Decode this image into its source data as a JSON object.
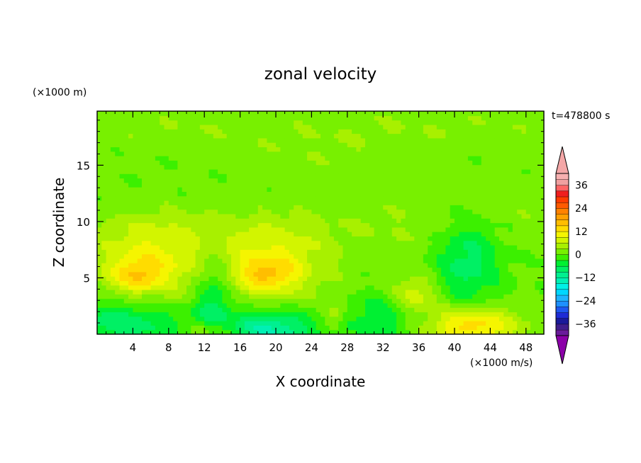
{
  "chart_data": {
    "type": "heatmap",
    "title": "zonal velocity",
    "xlabel": "X coordinate",
    "ylabel": "Z coordinate",
    "x_unit": "(×1000 m/s)",
    "y_unit": "(×1000 m)",
    "time_label": "t=478800 s",
    "xlim": [
      0,
      50
    ],
    "ylim": [
      0,
      19.8
    ],
    "x_ticks": [
      4,
      8,
      12,
      16,
      20,
      24,
      28,
      32,
      36,
      40,
      44,
      48
    ],
    "y_ticks": [
      5,
      10,
      15
    ],
    "colorbar": {
      "levels": [
        -42,
        -39,
        -36,
        -33,
        -30,
        -27,
        -24,
        -21,
        -18,
        -15,
        -12,
        -9,
        -6,
        -3,
        0,
        3,
        6,
        9,
        12,
        15,
        18,
        21,
        24,
        27,
        30,
        33,
        36,
        39,
        42
      ],
      "tick_labels": [
        "36",
        "24",
        "12",
        "0",
        "-12",
        "-24",
        "-36"
      ],
      "tick_values": [
        36,
        24,
        12,
        0,
        -12,
        -24,
        -36
      ],
      "colors": [
        "#6a1b9a",
        "#3f1e8c",
        "#1a1a9a",
        "#1e2bd6",
        "#1e57f0",
        "#1e90ff",
        "#1eb4ff",
        "#00d7ff",
        "#00f0e6",
        "#00f0b4",
        "#00f090",
        "#00f064",
        "#00f032",
        "#3cf000",
        "#78f000",
        "#a8f000",
        "#d2f500",
        "#f5f500",
        "#ffdc00",
        "#ffbe00",
        "#ffa000",
        "#ff8200",
        "#ff5a00",
        "#ff3c00",
        "#f01e1e",
        "#ff6464",
        "#f0a0a0",
        "#f7b0b0"
      ],
      "under_color": "#8b00a8",
      "over_color": "#f4a7a7"
    },
    "field_blobs": [
      {
        "x": 6.0,
        "z": 6.5,
        "sx": 4.5,
        "sz": 2.5,
        "v": 9
      },
      {
        "x": 4.5,
        "z": 5.2,
        "sx": 2.0,
        "sz": 1.0,
        "v": 8
      },
      {
        "x": 19.5,
        "z": 6.5,
        "sx": 4.5,
        "sz": 2.5,
        "v": 9
      },
      {
        "x": 19.0,
        "z": 5.3,
        "sx": 2.2,
        "sz": 1.0,
        "v": 8
      },
      {
        "x": 35.5,
        "z": 3.5,
        "sx": 1.8,
        "sz": 1.2,
        "v": 8
      },
      {
        "x": 42.0,
        "z": 0.8,
        "sx": 3.5,
        "sz": 1.2,
        "v": 14
      },
      {
        "x": 13.0,
        "z": 0.3,
        "sx": 2.0,
        "sz": 0.8,
        "v": 9
      },
      {
        "x": 26.5,
        "z": 1.6,
        "sx": 0.9,
        "sz": 0.8,
        "v": 6
      },
      {
        "x": 3.0,
        "z": 1.0,
        "sx": 5.0,
        "sz": 1.5,
        "v": -9
      },
      {
        "x": 19.0,
        "z": 0.5,
        "sx": 4.0,
        "sz": 1.2,
        "v": -13
      },
      {
        "x": 13.0,
        "z": 3.0,
        "sx": 1.5,
        "sz": 3.0,
        "v": -8
      },
      {
        "x": 41.5,
        "z": 6.5,
        "sx": 2.5,
        "sz": 3.0,
        "v": -8
      },
      {
        "x": 32.0,
        "z": 1.5,
        "sx": 3.0,
        "sz": 1.5,
        "v": -6
      },
      {
        "x": 25.0,
        "z": 16.5,
        "sx": 7.0,
        "sz": 2.0,
        "v": 2
      },
      {
        "x": 40.0,
        "z": 18.5,
        "sx": 10.0,
        "sz": 1.2,
        "v": 2
      },
      {
        "x": 8.0,
        "z": 18.3,
        "sx": 7.0,
        "sz": 1.2,
        "v": 2
      },
      {
        "x": 44.0,
        "z": 11.5,
        "sx": 7.0,
        "sz": 2.0,
        "v": 2
      },
      {
        "x": 10.0,
        "z": 9.3,
        "sx": 8.0,
        "sz": 1.3,
        "v": 2
      },
      {
        "x": 33.0,
        "z": 9.5,
        "sx": 6.0,
        "sz": 1.5,
        "v": 2
      }
    ]
  }
}
